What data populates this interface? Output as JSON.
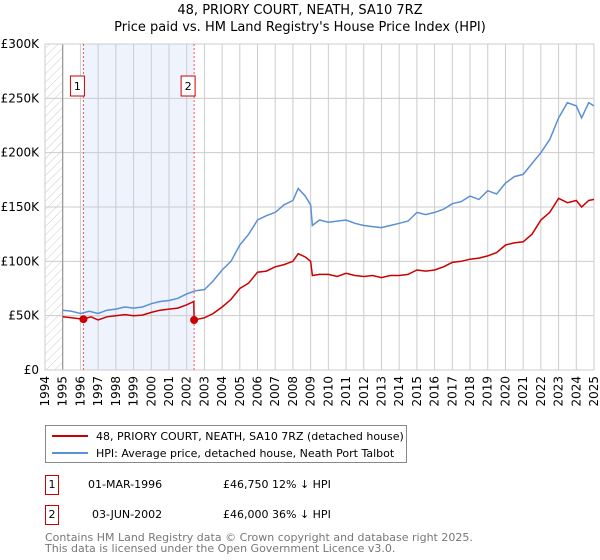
{
  "chart_data": {
    "type": "line",
    "title": "48, PRIORY COURT, NEATH, SA10 7RZ",
    "subtitle": "Price paid vs. HM Land Registry's House Price Index (HPI)",
    "xlim": [
      1994,
      2025
    ],
    "ylim": [
      0,
      300000
    ],
    "x_ticks": [
      "1994",
      "1995",
      "1996",
      "1997",
      "1998",
      "1999",
      "2000",
      "2001",
      "2002",
      "2003",
      "2004",
      "2005",
      "2006",
      "2007",
      "2008",
      "2009",
      "2010",
      "2011",
      "2012",
      "2013",
      "2014",
      "2015",
      "2016",
      "2017",
      "2018",
      "2019",
      "2020",
      "2021",
      "2022",
      "2023",
      "2024",
      "2025"
    ],
    "y_ticks": [
      {
        "v": 0,
        "label": "£0"
      },
      {
        "v": 50000,
        "label": "£50K"
      },
      {
        "v": 100000,
        "label": "£100K"
      },
      {
        "v": 150000,
        "label": "£150K"
      },
      {
        "v": 200000,
        "label": "£200K"
      },
      {
        "v": 250000,
        "label": "£250K"
      },
      {
        "v": 300000,
        "label": "£300K"
      }
    ],
    "grid": true,
    "series": [
      {
        "name": "48, PRIORY COURT, NEATH, SA10 7RZ (detached house)",
        "color": "#cc0000",
        "x": [
          1995,
          1995.5,
          1996.17,
          1996.6,
          1997,
          1997.5,
          1998,
          1998.5,
          1999,
          1999.5,
          2000,
          2000.5,
          2001,
          2001.5,
          2002,
          2002.4,
          2002.42,
          2003,
          2003.5,
          2004,
          2004.5,
          2005,
          2005.5,
          2006,
          2006.5,
          2007,
          2007.5,
          2008,
          2008.3,
          2008.7,
          2009,
          2009.1,
          2009.5,
          2010,
          2010.5,
          2011,
          2011.5,
          2012,
          2012.5,
          2013,
          2013.5,
          2014,
          2014.5,
          2015,
          2015.5,
          2016,
          2016.5,
          2017,
          2017.5,
          2018,
          2018.5,
          2019,
          2019.5,
          2020,
          2020.5,
          2021,
          2021.5,
          2022,
          2022.5,
          2023,
          2023.5,
          2024,
          2024.3,
          2024.7,
          2025
        ],
        "y": [
          49000,
          48000,
          46750,
          49000,
          46000,
          49000,
          50000,
          51000,
          50000,
          50500,
          53000,
          55000,
          56000,
          57000,
          60000,
          63000,
          46000,
          48000,
          52000,
          58000,
          65000,
          75000,
          80000,
          90000,
          91000,
          95000,
          97000,
          100000,
          107000,
          104000,
          100000,
          87000,
          88000,
          88000,
          86000,
          89000,
          87000,
          86000,
          87000,
          85000,
          87000,
          87000,
          88000,
          92000,
          91000,
          92000,
          95000,
          99000,
          100000,
          102000,
          103000,
          105000,
          108000,
          115000,
          117000,
          118000,
          125000,
          138000,
          145000,
          158000,
          154000,
          156000,
          150000,
          156000,
          157000
        ]
      },
      {
        "name": "HPI: Average price, detached house, Neath Port Talbot",
        "color": "#5b8fd6",
        "x": [
          1995,
          1995.5,
          1996,
          1996.5,
          1997,
          1997.5,
          1998,
          1998.5,
          1999,
          1999.5,
          2000,
          2000.5,
          2001,
          2001.5,
          2002,
          2002.5,
          2003,
          2003.5,
          2004,
          2004.5,
          2005,
          2005.5,
          2006,
          2006.5,
          2007,
          2007.5,
          2008,
          2008.3,
          2008.7,
          2009,
          2009.1,
          2009.5,
          2010,
          2010.5,
          2011,
          2011.5,
          2012,
          2012.5,
          2013,
          2013.5,
          2014,
          2014.5,
          2015,
          2015.5,
          2016,
          2016.5,
          2017,
          2017.5,
          2018,
          2018.5,
          2019,
          2019.5,
          2020,
          2020.5,
          2021,
          2021.5,
          2022,
          2022.5,
          2023,
          2023.5,
          2024,
          2024.3,
          2024.7,
          2025
        ],
        "y": [
          55000,
          54000,
          52000,
          54000,
          52000,
          55000,
          56000,
          58000,
          57000,
          58000,
          61000,
          63000,
          64000,
          66000,
          70000,
          73000,
          74000,
          82000,
          92000,
          100000,
          115000,
          125000,
          138000,
          142000,
          145000,
          152000,
          156000,
          167000,
          160000,
          152000,
          133000,
          138000,
          136000,
          137000,
          138000,
          135000,
          133000,
          132000,
          131000,
          133000,
          135000,
          137000,
          145000,
          143000,
          145000,
          148000,
          153000,
          155000,
          160000,
          157000,
          165000,
          162000,
          172000,
          178000,
          180000,
          190000,
          200000,
          212000,
          232000,
          246000,
          243000,
          232000,
          246000,
          243000
        ]
      }
    ],
    "annotations": [
      {
        "label": "1",
        "x": 1996.17,
        "y": 46750
      },
      {
        "label": "2",
        "x": 2002.42,
        "y": 46000
      }
    ],
    "shaded_range": [
      1996.17,
      2002.42
    ],
    "hatched_range": [
      1994,
      1995
    ],
    "legend_position": "below"
  },
  "legend": [
    {
      "label": "48, PRIORY COURT, NEATH, SA10 7RZ (detached house)",
      "color": "#cc0000"
    },
    {
      "label": "HPI: Average price, detached house, Neath Port Talbot",
      "color": "#5b8fd6"
    }
  ],
  "transactions": [
    {
      "num": "1",
      "date": "01-MAR-1996",
      "price": "£46,750",
      "hpi": "12% ↓ HPI"
    },
    {
      "num": "2",
      "date": "03-JUN-2002",
      "price": "£46,000",
      "hpi": "36% ↓ HPI"
    }
  ],
  "footer": {
    "line1": "Contains HM Land Registry data © Crown copyright and database right 2025.",
    "line2": "This data is licensed under the Open Government Licence v3.0."
  }
}
